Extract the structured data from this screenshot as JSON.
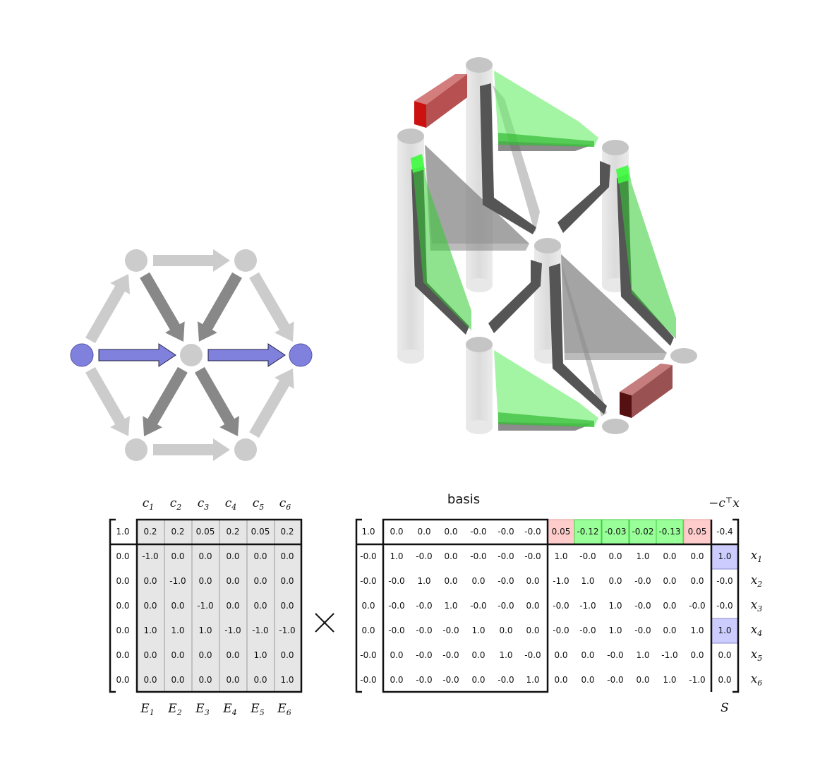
{
  "graph": {
    "node_color": "#cccccc",
    "source_sink_color": "#8080dd",
    "light_arrow_color": "#cccccc",
    "dark_arrow_color": "#888888",
    "flow_arrow_color": "#8080dd"
  },
  "polytope_3d": {
    "pillar_color": "#e0e0e0",
    "cap_color": "#bbbbbb",
    "face_gray": "#999999",
    "edge_dark": "#555555",
    "face_green": "#66ee66",
    "face_red": "#cc3333"
  },
  "left_matrix": {
    "col_labels": [
      {
        "base": "c",
        "sub": "1"
      },
      {
        "base": "c",
        "sub": "2"
      },
      {
        "base": "c",
        "sub": "3"
      },
      {
        "base": "c",
        "sub": "4"
      },
      {
        "base": "c",
        "sub": "5"
      },
      {
        "base": "c",
        "sub": "6"
      }
    ],
    "bottom_labels": [
      {
        "base": "E",
        "sub": "1"
      },
      {
        "base": "E",
        "sub": "2"
      },
      {
        "base": "E",
        "sub": "3"
      },
      {
        "base": "E",
        "sub": "4"
      },
      {
        "base": "E",
        "sub": "5"
      },
      {
        "base": "E",
        "sub": "6"
      }
    ],
    "rows": [
      [
        "1.0",
        "0.2",
        "0.2",
        "0.05",
        "0.2",
        "0.05",
        "0.2"
      ],
      [
        "0.0",
        "-1.0",
        "0.0",
        "0.0",
        "0.0",
        "0.0",
        "0.0"
      ],
      [
        "0.0",
        "0.0",
        "-1.0",
        "0.0",
        "0.0",
        "0.0",
        "0.0"
      ],
      [
        "0.0",
        "0.0",
        "0.0",
        "-1.0",
        "0.0",
        "0.0",
        "0.0"
      ],
      [
        "0.0",
        "1.0",
        "1.0",
        "1.0",
        "-1.0",
        "-1.0",
        "-1.0"
      ],
      [
        "0.0",
        "0.0",
        "0.0",
        "0.0",
        "0.0",
        "1.0",
        "0.0"
      ],
      [
        "0.0",
        "0.0",
        "0.0",
        "0.0",
        "0.0",
        "0.0",
        "1.0"
      ]
    ],
    "shade_color": "#e6e6e6"
  },
  "times_symbol": "×",
  "right_matrix": {
    "title": "basis",
    "objective_label": {
      "prefix": "−c",
      "sup": "⊤",
      "suffix": "x"
    },
    "s_label": "S",
    "row_labels": [
      {
        "base": "x",
        "sub": "1"
      },
      {
        "base": "x",
        "sub": "2"
      },
      {
        "base": "x",
        "sub": "3"
      },
      {
        "base": "x",
        "sub": "4"
      },
      {
        "base": "x",
        "sub": "5"
      },
      {
        "base": "x",
        "sub": "6"
      }
    ],
    "rows": [
      [
        "1.0",
        "0.0",
        "0.0",
        "0.0",
        "-0.0",
        "-0.0",
        "-0.0",
        "0.05",
        "-0.12",
        "-0.03",
        "-0.02",
        "-0.13",
        "0.05",
        "-0.4"
      ],
      [
        "-0.0",
        "1.0",
        "-0.0",
        "0.0",
        "-0.0",
        "-0.0",
        "-0.0",
        "1.0",
        "-0.0",
        "0.0",
        "1.0",
        "0.0",
        "0.0",
        "1.0"
      ],
      [
        "-0.0",
        "-0.0",
        "1.0",
        "0.0",
        "0.0",
        "-0.0",
        "0.0",
        "-1.0",
        "1.0",
        "0.0",
        "-0.0",
        "0.0",
        "0.0",
        "-0.0"
      ],
      [
        "0.0",
        "-0.0",
        "-0.0",
        "1.0",
        "-0.0",
        "-0.0",
        "0.0",
        "-0.0",
        "-1.0",
        "1.0",
        "-0.0",
        "0.0",
        "-0.0",
        "-0.0"
      ],
      [
        "0.0",
        "-0.0",
        "-0.0",
        "-0.0",
        "1.0",
        "0.0",
        "0.0",
        "-0.0",
        "-0.0",
        "1.0",
        "-0.0",
        "0.0",
        "1.0",
        "1.0"
      ],
      [
        "-0.0",
        "0.0",
        "-0.0",
        "-0.0",
        "0.0",
        "1.0",
        "-0.0",
        "0.0",
        "0.0",
        "-0.0",
        "1.0",
        "-1.0",
        "0.0",
        "0.0"
      ],
      [
        "-0.0",
        "0.0",
        "-0.0",
        "-0.0",
        "0.0",
        "-0.0",
        "1.0",
        "0.0",
        "0.0",
        "-0.0",
        "0.0",
        "1.0",
        "-1.0",
        "0.0"
      ]
    ],
    "cost_highlight": [
      "red",
      "green",
      "green",
      "green",
      "green",
      "red"
    ],
    "highlight_colors": {
      "red": "#ffcccc",
      "green": "#99ff99",
      "blue": "#ccccff"
    },
    "solution_highlight_rows": [
      1,
      4
    ]
  }
}
